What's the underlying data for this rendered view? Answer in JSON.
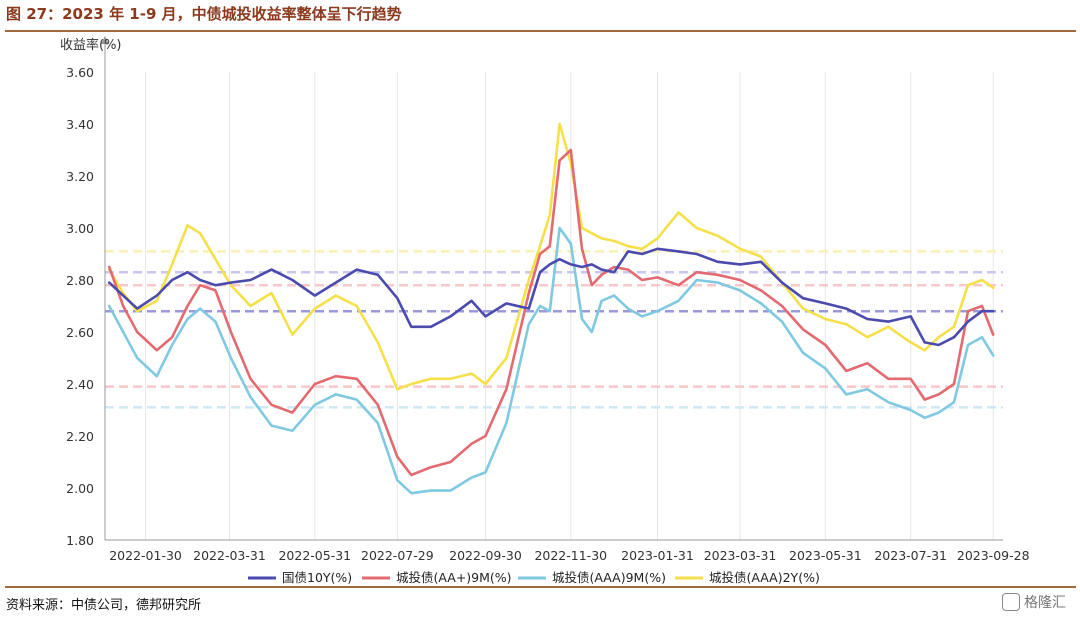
{
  "figure_title": "图 27：2023 年 1-9 月，中债城投收益率整体呈下行趋势",
  "source_note": "资料来源：中债公司，德邦研究所",
  "watermark": "格隆汇",
  "chart_data": {
    "type": "line",
    "ylabel": "收益率(%)",
    "ylim": [
      1.8,
      3.6
    ],
    "yticks": [
      "1.80",
      "2.00",
      "2.20",
      "2.40",
      "2.60",
      "2.80",
      "3.00",
      "3.20",
      "3.40",
      "3.60"
    ],
    "xlim": [
      "2022-01-01",
      "2023-10-05"
    ],
    "xticks": [
      "2022-01-30",
      "2022-03-31",
      "2022-05-31",
      "2022-07-29",
      "2022-09-30",
      "2022-11-30",
      "2023-01-31",
      "2023-03-31",
      "2023-05-31",
      "2023-07-31",
      "2023-09-28"
    ],
    "grid": "vertical",
    "legend_position": "bottom",
    "colors": {
      "guozhai": "#4b4aae",
      "aaplus9m": "#e36a70",
      "aaa9m": "#7fc9e2",
      "aaa2y": "#f5e04a"
    },
    "reference_lines": [
      {
        "series": "国债10Y(%)",
        "y": 2.83,
        "color": "#c9c7ee"
      },
      {
        "series": "国债10Y(%)",
        "y": 2.68,
        "color": "#9b99da"
      },
      {
        "series": "城投债(AA+)9M(%)",
        "y": 2.78,
        "color": "#f6c8cb"
      },
      {
        "series": "城投债(AA+)9M(%)",
        "y": 2.39,
        "color": "#f6c8cb"
      },
      {
        "series": "城投债(AAA)9M(%)",
        "y": 2.31,
        "color": "#cfe9f4"
      },
      {
        "series": "城投债(AAA)2Y(%)",
        "y": 2.91,
        "color": "#faf1b5"
      }
    ],
    "series": [
      {
        "name": "国债10Y(%)",
        "color": "#4b4aae",
        "x": [
          "2022-01-04",
          "2022-01-14",
          "2022-01-24",
          "2022-02-07",
          "2022-02-18",
          "2022-03-01",
          "2022-03-10",
          "2022-03-21",
          "2022-04-01",
          "2022-04-15",
          "2022-04-30",
          "2022-05-15",
          "2022-05-31",
          "2022-06-15",
          "2022-06-30",
          "2022-07-15",
          "2022-07-29",
          "2022-08-08",
          "2022-08-22",
          "2022-09-05",
          "2022-09-20",
          "2022-09-30",
          "2022-10-15",
          "2022-10-31",
          "2022-11-08",
          "2022-11-15",
          "2022-11-22",
          "2022-11-30",
          "2022-12-08",
          "2022-12-15",
          "2022-12-22",
          "2022-12-31",
          "2023-01-10",
          "2023-01-20",
          "2023-01-31",
          "2023-02-15",
          "2023-02-28",
          "2023-03-15",
          "2023-03-31",
          "2023-04-15",
          "2023-04-30",
          "2023-05-15",
          "2023-05-31",
          "2023-06-15",
          "2023-06-30",
          "2023-07-15",
          "2023-07-31",
          "2023-08-10",
          "2023-08-20",
          "2023-08-31",
          "2023-09-10",
          "2023-09-20",
          "2023-09-28"
        ],
        "y": [
          2.79,
          2.74,
          2.69,
          2.74,
          2.8,
          2.83,
          2.8,
          2.78,
          2.79,
          2.8,
          2.84,
          2.8,
          2.74,
          2.79,
          2.84,
          2.82,
          2.73,
          2.62,
          2.62,
          2.66,
          2.72,
          2.66,
          2.71,
          2.69,
          2.83,
          2.86,
          2.88,
          2.86,
          2.85,
          2.86,
          2.84,
          2.83,
          2.91,
          2.9,
          2.92,
          2.91,
          2.9,
          2.87,
          2.86,
          2.87,
          2.79,
          2.73,
          2.71,
          2.69,
          2.65,
          2.64,
          2.66,
          2.56,
          2.55,
          2.58,
          2.64,
          2.68,
          2.68
        ]
      },
      {
        "name": "城投债(AA+)9M(%)",
        "color": "#e36a70",
        "x": [
          "2022-01-04",
          "2022-01-14",
          "2022-01-24",
          "2022-02-07",
          "2022-02-18",
          "2022-03-01",
          "2022-03-10",
          "2022-03-21",
          "2022-04-01",
          "2022-04-15",
          "2022-04-30",
          "2022-05-15",
          "2022-05-31",
          "2022-06-15",
          "2022-06-30",
          "2022-07-15",
          "2022-07-29",
          "2022-08-08",
          "2022-08-22",
          "2022-09-05",
          "2022-09-20",
          "2022-09-30",
          "2022-10-15",
          "2022-10-31",
          "2022-11-08",
          "2022-11-15",
          "2022-11-22",
          "2022-11-30",
          "2022-12-08",
          "2022-12-15",
          "2022-12-22",
          "2022-12-31",
          "2023-01-10",
          "2023-01-20",
          "2023-01-31",
          "2023-02-15",
          "2023-02-28",
          "2023-03-15",
          "2023-03-31",
          "2023-04-15",
          "2023-04-30",
          "2023-05-15",
          "2023-05-31",
          "2023-06-15",
          "2023-06-30",
          "2023-07-15",
          "2023-07-31",
          "2023-08-10",
          "2023-08-20",
          "2023-08-31",
          "2023-09-10",
          "2023-09-20",
          "2023-09-28"
        ],
        "y": [
          2.85,
          2.7,
          2.6,
          2.53,
          2.58,
          2.7,
          2.78,
          2.76,
          2.6,
          2.42,
          2.32,
          2.29,
          2.4,
          2.43,
          2.42,
          2.32,
          2.12,
          2.05,
          2.08,
          2.1,
          2.17,
          2.2,
          2.38,
          2.75,
          2.9,
          2.93,
          3.26,
          3.3,
          2.92,
          2.78,
          2.82,
          2.85,
          2.84,
          2.8,
          2.81,
          2.78,
          2.83,
          2.82,
          2.8,
          2.76,
          2.7,
          2.61,
          2.55,
          2.45,
          2.48,
          2.42,
          2.42,
          2.34,
          2.36,
          2.4,
          2.68,
          2.7,
          2.59
        ]
      },
      {
        "name": "城投债(AAA)9M(%)",
        "color": "#7fc9e2",
        "x": [
          "2022-01-04",
          "2022-01-14",
          "2022-01-24",
          "2022-02-07",
          "2022-02-18",
          "2022-03-01",
          "2022-03-10",
          "2022-03-21",
          "2022-04-01",
          "2022-04-15",
          "2022-04-30",
          "2022-05-15",
          "2022-05-31",
          "2022-06-15",
          "2022-06-30",
          "2022-07-15",
          "2022-07-29",
          "2022-08-08",
          "2022-08-22",
          "2022-09-05",
          "2022-09-20",
          "2022-09-30",
          "2022-10-15",
          "2022-10-31",
          "2022-11-08",
          "2022-11-15",
          "2022-11-22",
          "2022-11-30",
          "2022-12-08",
          "2022-12-15",
          "2022-12-22",
          "2022-12-31",
          "2023-01-10",
          "2023-01-20",
          "2023-01-31",
          "2023-02-15",
          "2023-02-28",
          "2023-03-15",
          "2023-03-31",
          "2023-04-15",
          "2023-04-30",
          "2023-05-15",
          "2023-05-31",
          "2023-06-15",
          "2023-06-30",
          "2023-07-15",
          "2023-07-31",
          "2023-08-10",
          "2023-08-20",
          "2023-08-31",
          "2023-09-10",
          "2023-09-20",
          "2023-09-28"
        ],
        "y": [
          2.7,
          2.6,
          2.5,
          2.43,
          2.55,
          2.65,
          2.69,
          2.64,
          2.5,
          2.35,
          2.24,
          2.22,
          2.32,
          2.36,
          2.34,
          2.25,
          2.03,
          1.98,
          1.99,
          1.99,
          2.04,
          2.06,
          2.25,
          2.63,
          2.7,
          2.68,
          3.0,
          2.94,
          2.65,
          2.6,
          2.72,
          2.74,
          2.69,
          2.66,
          2.68,
          2.72,
          2.8,
          2.79,
          2.76,
          2.71,
          2.64,
          2.52,
          2.46,
          2.36,
          2.38,
          2.33,
          2.3,
          2.27,
          2.29,
          2.33,
          2.55,
          2.58,
          2.51
        ]
      },
      {
        "name": "城投债(AAA)2Y(%)",
        "color": "#f5e04a",
        "x": [
          "2022-01-04",
          "2022-01-14",
          "2022-01-24",
          "2022-02-07",
          "2022-02-18",
          "2022-03-01",
          "2022-03-10",
          "2022-03-21",
          "2022-04-01",
          "2022-04-15",
          "2022-04-30",
          "2022-05-15",
          "2022-05-31",
          "2022-06-15",
          "2022-06-30",
          "2022-07-15",
          "2022-07-29",
          "2022-08-08",
          "2022-08-22",
          "2022-09-05",
          "2022-09-20",
          "2022-09-30",
          "2022-10-15",
          "2022-10-31",
          "2022-11-08",
          "2022-11-15",
          "2022-11-22",
          "2022-11-30",
          "2022-12-08",
          "2022-12-15",
          "2022-12-22",
          "2022-12-31",
          "2023-01-10",
          "2023-01-20",
          "2023-01-31",
          "2023-02-15",
          "2023-02-28",
          "2023-03-15",
          "2023-03-31",
          "2023-04-15",
          "2023-04-30",
          "2023-05-15",
          "2023-05-31",
          "2023-06-15",
          "2023-06-30",
          "2023-07-15",
          "2023-07-31",
          "2023-08-10",
          "2023-08-20",
          "2023-08-31",
          "2023-09-10",
          "2023-09-20",
          "2023-09-28"
        ],
        "y": [
          2.84,
          2.75,
          2.68,
          2.72,
          2.86,
          3.01,
          2.98,
          2.88,
          2.78,
          2.7,
          2.75,
          2.59,
          2.69,
          2.74,
          2.7,
          2.56,
          2.38,
          2.4,
          2.42,
          2.42,
          2.44,
          2.4,
          2.5,
          2.8,
          2.93,
          3.05,
          3.4,
          3.25,
          3.0,
          2.98,
          2.96,
          2.95,
          2.93,
          2.92,
          2.96,
          3.06,
          3.0,
          2.97,
          2.92,
          2.89,
          2.79,
          2.69,
          2.65,
          2.63,
          2.58,
          2.62,
          2.56,
          2.53,
          2.58,
          2.62,
          2.78,
          2.8,
          2.77
        ]
      }
    ]
  }
}
